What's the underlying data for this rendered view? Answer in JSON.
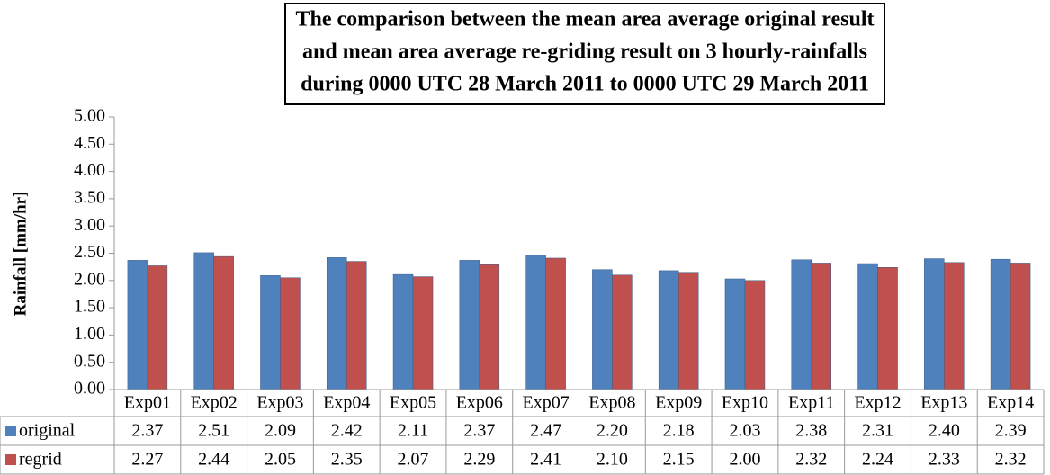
{
  "chart_data": {
    "type": "bar",
    "title": [
      "The comparison between the mean area average original result",
      "and mean area average re-griding result on 3 hourly-rainfalls",
      "during 0000 UTC 28 March 2011 to 0000 UTC 29 March 2011"
    ],
    "y_label": "Rainfall [mm/hr]",
    "categories": [
      "Exp01",
      "Exp02",
      "Exp03",
      "Exp04",
      "Exp05",
      "Exp06",
      "Exp07",
      "Exp08",
      "Exp09",
      "Exp10",
      "Exp11",
      "Exp12",
      "Exp13",
      "Exp14"
    ],
    "series": [
      {
        "name": "original",
        "color": "#4f81bd",
        "values": [
          2.37,
          2.51,
          2.09,
          2.42,
          2.11,
          2.37,
          2.47,
          2.2,
          2.18,
          2.03,
          2.38,
          2.31,
          2.4,
          2.39
        ],
        "value_labels": [
          "2.37",
          "2.51",
          "2.09",
          "2.42",
          "2.11",
          "2.37",
          "2.47",
          "2.20",
          "2.18",
          "2.03",
          "2.38",
          "2.31",
          "2.40",
          "2.39"
        ]
      },
      {
        "name": "regrid",
        "color": "#c0504d",
        "values": [
          2.27,
          2.44,
          2.05,
          2.35,
          2.07,
          2.29,
          2.41,
          2.1,
          2.15,
          2.0,
          2.32,
          2.24,
          2.33,
          2.32
        ],
        "value_labels": [
          "2.27",
          "2.44",
          "2.05",
          "2.35",
          "2.07",
          "2.29",
          "2.41",
          "2.10",
          "2.15",
          "2.00",
          "2.32",
          "2.24",
          "2.33",
          "2.32"
        ]
      }
    ],
    "ylim": [
      0,
      5
    ],
    "yticks": [
      {
        "value": 0,
        "label": "0.00"
      },
      {
        "value": 0.5,
        "label": "0.50"
      },
      {
        "value": 1,
        "label": "1.00"
      },
      {
        "value": 1.5,
        "label": "1.50"
      },
      {
        "value": 2,
        "label": "2.00"
      },
      {
        "value": 2.5,
        "label": "2.50"
      },
      {
        "value": 3,
        "label": "3.00"
      },
      {
        "value": 3.5,
        "label": "3.50"
      },
      {
        "value": 4,
        "label": "4.00"
      },
      {
        "value": 4.5,
        "label": "4.50"
      },
      {
        "value": 5,
        "label": "5.00"
      }
    ],
    "grid": false
  }
}
